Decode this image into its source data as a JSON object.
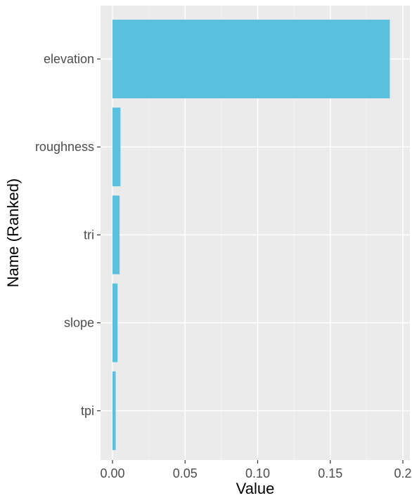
{
  "chart_data": {
    "type": "bar",
    "orientation": "horizontal",
    "title": "",
    "xlabel": "Value",
    "ylabel": "Name (Ranked)",
    "categories": [
      "elevation",
      "roughness",
      "tri",
      "slope",
      "tpi"
    ],
    "values": [
      0.191,
      0.0055,
      0.0049,
      0.0035,
      0.0022
    ],
    "xlim": [
      0,
      0.2
    ],
    "x_ticks": [
      "0.00",
      "0.05",
      "0.10",
      "0.15",
      "0.2"
    ],
    "x_tick_values": [
      0,
      0.05,
      0.1,
      0.15,
      0.2
    ],
    "bar_color": "#5bc0de",
    "panel_background": "#ebebeb",
    "grid": true
  }
}
